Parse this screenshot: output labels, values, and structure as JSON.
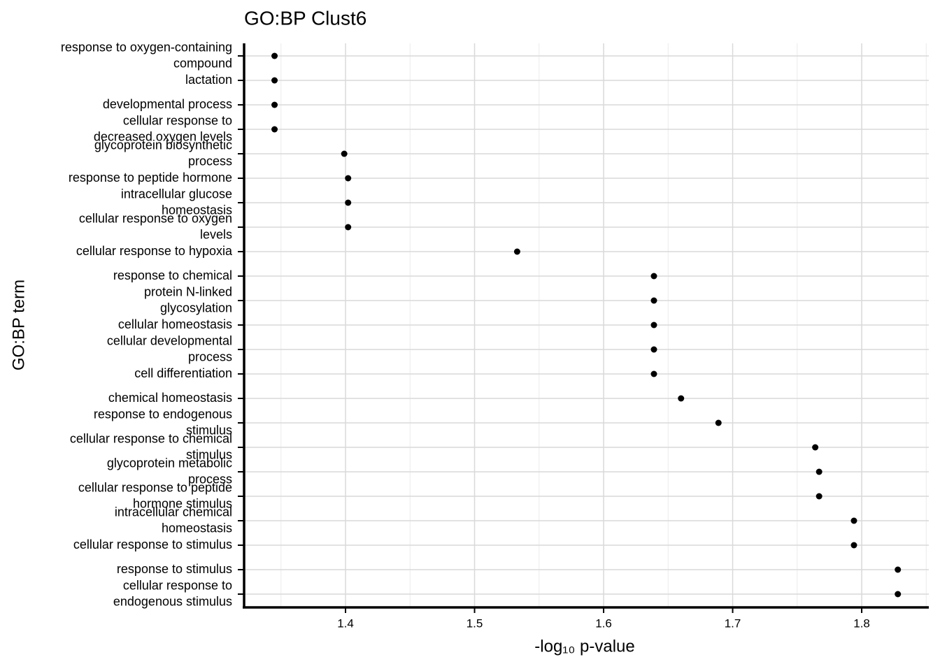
{
  "chart_data": {
    "type": "dot",
    "title": "GO:BP Clust6",
    "x_label": "-log₁₀ p-value",
    "y_label": "GO:BP term",
    "categories": [
      "response to oxygen-containing\ncompound",
      "lactation",
      "developmental process",
      "cellular response to\ndecreased oxygen levels",
      "glycoprotein biosynthetic\nprocess",
      "response to peptide hormone",
      "intracellular glucose\nhomeostasis",
      "cellular response to oxygen\nlevels",
      "cellular response to hypoxia",
      "response to chemical",
      "protein N-linked\nglycosylation",
      "cellular homeostasis",
      "cellular developmental\nprocess",
      "cell differentiation",
      "chemical homeostasis",
      "response to endogenous\nstimulus",
      "cellular response to chemical\nstimulus",
      "glycoprotein metabolic\nprocess",
      "cellular response to peptide\nhormone stimulus",
      "intracellular chemical\nhomeostasis",
      "cellular response to stimulus",
      "response to stimulus",
      "cellular response to\nendogenous stimulus"
    ],
    "values": [
      1.345,
      1.345,
      1.345,
      1.345,
      1.399,
      1.402,
      1.402,
      1.402,
      1.533,
      1.639,
      1.639,
      1.639,
      1.639,
      1.639,
      1.66,
      1.689,
      1.764,
      1.767,
      1.767,
      1.794,
      1.794,
      1.828,
      1.828
    ],
    "color": "#000000",
    "xlim": [
      1.3214,
      1.852
    ],
    "xticks": [
      1.4,
      1.5,
      1.6,
      1.7,
      1.8
    ],
    "grid": true
  }
}
